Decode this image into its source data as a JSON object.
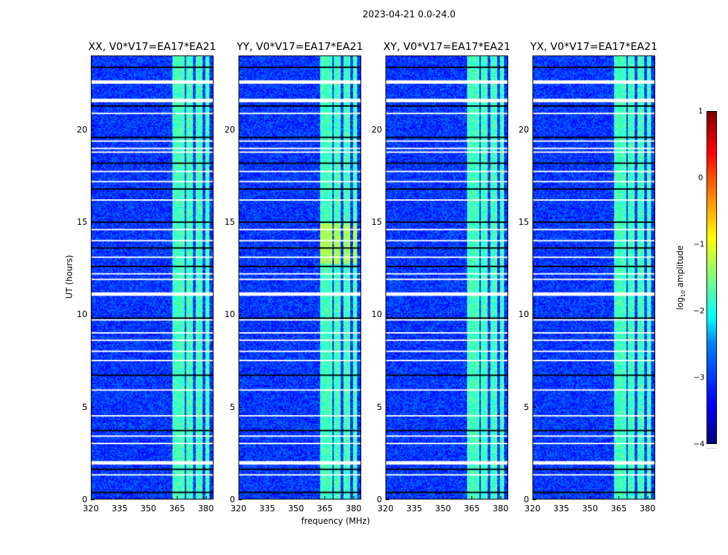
{
  "suptitle": "2023-04-21 0.0-24.0",
  "xlabel": "frequency (MHz)",
  "ylabel": "UT (hours)",
  "colorbar": {
    "label_main": "log",
    "label_sub": "10",
    "label_rest": " amplitude",
    "ticks": [
      "1",
      "0",
      "−1",
      "−2",
      "−3",
      "−4"
    ],
    "values": [
      1,
      0,
      -1,
      -2,
      -3,
      -4
    ],
    "range": [
      -4,
      1
    ],
    "colormap": "jet"
  },
  "chart_data": {
    "type": "heatmap",
    "panels": [
      {
        "title": "XX, V0*V17=EA17*EA21"
      },
      {
        "title": "YY, V0*V17=EA17*EA21"
      },
      {
        "title": "XY, V0*V17=EA17*EA21"
      },
      {
        "title": "YX, V0*V17=EA17*EA21"
      }
    ],
    "xlim": [
      320,
      384
    ],
    "ylim": [
      0,
      24
    ],
    "xticks": [
      320,
      335,
      350,
      365,
      380
    ],
    "yticks": [
      0,
      5,
      10,
      15,
      20
    ],
    "background_log_amplitude": -3.1,
    "bright_bands_mhz": [
      [
        362.5,
        368.5
      ],
      [
        369.5,
        373.5
      ],
      [
        374.5,
        378.5
      ],
      [
        379.5,
        382
      ]
    ],
    "bright_log_amplitude": -1.8,
    "flagged_white_hours": [
      22.6,
      21.6,
      20.9,
      19.4,
      19.0,
      18.8,
      17.75,
      17.2,
      16.2,
      14.6,
      14.0,
      13.1,
      12.2,
      11.9,
      11.1,
      9.7,
      9.0,
      8.6,
      8.0,
      7.5,
      5.9,
      4.5,
      3.4,
      3.0,
      1.95,
      1.3
    ],
    "dark_row_hours": [
      23.4,
      21.3,
      19.6,
      18.2,
      16.8,
      15.0,
      13.6,
      12.6,
      9.8,
      6.7,
      3.7,
      1.6,
      0.35
    ]
  }
}
